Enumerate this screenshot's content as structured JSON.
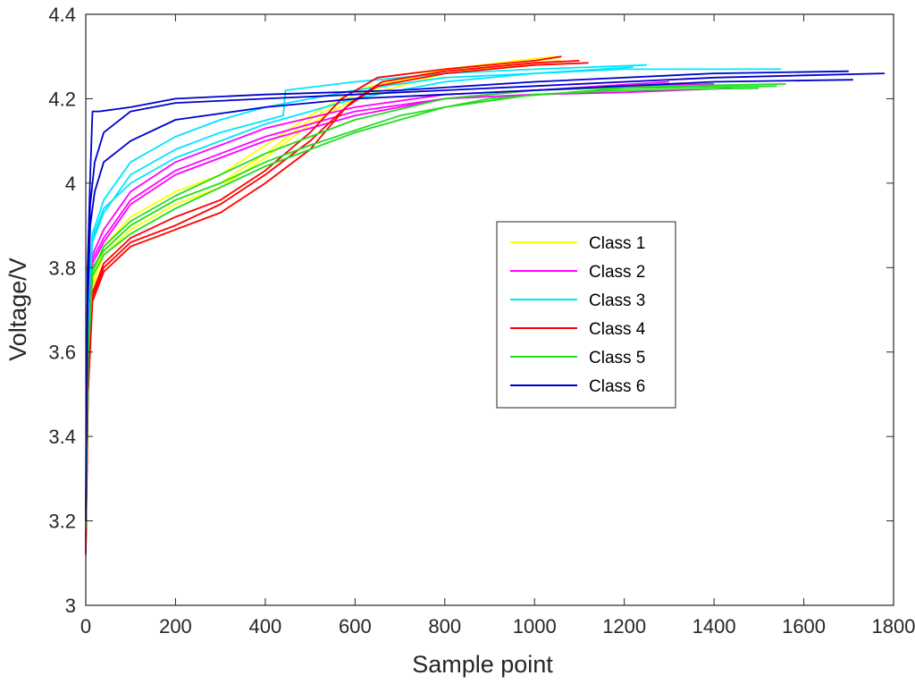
{
  "chart_data": {
    "type": "line",
    "xlabel": "Sample point",
    "ylabel": "Voltage/V",
    "xlim": [
      0,
      1800
    ],
    "ylim": [
      3,
      4.4
    ],
    "xticks": [
      0,
      200,
      400,
      600,
      800,
      1000,
      1200,
      1400,
      1600,
      1800
    ],
    "yticks": [
      3,
      3.2,
      3.4,
      3.6,
      3.8,
      4,
      4.2,
      4.4
    ],
    "ytick_labels": [
      "3",
      "3.2",
      "3.4",
      "3.6",
      "3.8",
      "4",
      "4.2",
      "4.4"
    ],
    "grid": false,
    "legend_position": "right-center",
    "series": [
      {
        "name": "Class 1",
        "color": "#ffff00",
        "curves": [
          [
            [
              0,
              3.2
            ],
            [
              5,
              3.55
            ],
            [
              15,
              3.75
            ],
            [
              40,
              3.84
            ],
            [
              100,
              3.9
            ],
            [
              200,
              3.96
            ],
            [
              300,
              4.0
            ],
            [
              400,
              4.07
            ],
            [
              500,
              4.15
            ],
            [
              600,
              4.21
            ],
            [
              800,
              4.27
            ],
            [
              1000,
              4.295
            ],
            [
              1050,
              4.3
            ]
          ],
          [
            [
              0,
              3.22
            ],
            [
              5,
              3.57
            ],
            [
              15,
              3.77
            ],
            [
              40,
              3.85
            ],
            [
              100,
              3.92
            ],
            [
              200,
              3.98
            ],
            [
              300,
              4.02
            ],
            [
              400,
              4.09
            ],
            [
              500,
              4.16
            ],
            [
              600,
              4.22
            ],
            [
              800,
              4.27
            ],
            [
              1000,
              4.29
            ],
            [
              1040,
              4.295
            ]
          ],
          [
            [
              0,
              3.21
            ],
            [
              5,
              3.56
            ],
            [
              15,
              3.76
            ],
            [
              40,
              3.83
            ],
            [
              100,
              3.89
            ],
            [
              200,
              3.95
            ],
            [
              300,
              3.99
            ],
            [
              400,
              4.06
            ],
            [
              500,
              4.14
            ],
            [
              600,
              4.2
            ],
            [
              800,
              4.26
            ],
            [
              1000,
              4.285
            ],
            [
              1060,
              4.29
            ]
          ]
        ]
      },
      {
        "name": "Class 2",
        "color": "#ff00ff",
        "curves": [
          [
            [
              0,
              3.12
            ],
            [
              5,
              3.6
            ],
            [
              15,
              3.82
            ],
            [
              40,
              3.87
            ],
            [
              100,
              3.96
            ],
            [
              200,
              4.03
            ],
            [
              300,
              4.07
            ],
            [
              400,
              4.11
            ],
            [
              600,
              4.17
            ],
            [
              800,
              4.2
            ],
            [
              1000,
              4.21
            ],
            [
              1200,
              4.215
            ],
            [
              1440,
              4.225
            ]
          ],
          [
            [
              0,
              3.15
            ],
            [
              5,
              3.62
            ],
            [
              15,
              3.83
            ],
            [
              40,
              3.89
            ],
            [
              100,
              3.98
            ],
            [
              200,
              4.05
            ],
            [
              300,
              4.09
            ],
            [
              400,
              4.13
            ],
            [
              600,
              4.18
            ],
            [
              800,
              4.21
            ],
            [
              1000,
              4.22
            ],
            [
              1200,
              4.23
            ],
            [
              1400,
              4.235
            ]
          ],
          [
            [
              0,
              3.14
            ],
            [
              5,
              3.61
            ],
            [
              15,
              3.81
            ],
            [
              40,
              3.86
            ],
            [
              100,
              3.95
            ],
            [
              200,
              4.02
            ],
            [
              300,
              4.06
            ],
            [
              400,
              4.1
            ],
            [
              600,
              4.16
            ],
            [
              800,
              4.2
            ],
            [
              1000,
              4.22
            ],
            [
              1300,
              4.24
            ]
          ]
        ]
      },
      {
        "name": "Class 3",
        "color": "#00e5ff",
        "curves": [
          [
            [
              0,
              3.3
            ],
            [
              5,
              3.7
            ],
            [
              15,
              3.86
            ],
            [
              40,
              3.93
            ],
            [
              100,
              4.02
            ],
            [
              200,
              4.08
            ],
            [
              300,
              4.12
            ],
            [
              440,
              4.16
            ],
            [
              445,
              4.22
            ],
            [
              600,
              4.24
            ],
            [
              800,
              4.26
            ],
            [
              1000,
              4.27
            ],
            [
              1250,
              4.28
            ]
          ],
          [
            [
              0,
              3.32
            ],
            [
              5,
              3.72
            ],
            [
              15,
              3.88
            ],
            [
              40,
              3.96
            ],
            [
              100,
              4.05
            ],
            [
              200,
              4.11
            ],
            [
              300,
              4.15
            ],
            [
              400,
              4.18
            ],
            [
              600,
              4.22
            ],
            [
              800,
              4.25
            ],
            [
              1000,
              4.26
            ],
            [
              1200,
              4.27
            ],
            [
              1550,
              4.27
            ]
          ],
          [
            [
              0,
              3.31
            ],
            [
              5,
              3.71
            ],
            [
              15,
              3.87
            ],
            [
              40,
              3.94
            ],
            [
              100,
              4.0
            ],
            [
              200,
              4.06
            ],
            [
              300,
              4.1
            ],
            [
              400,
              4.14
            ],
            [
              600,
              4.2
            ],
            [
              800,
              4.24
            ],
            [
              1000,
              4.26
            ],
            [
              1220,
              4.275
            ]
          ]
        ]
      },
      {
        "name": "Class 4",
        "color": "#ff0000",
        "curves": [
          [
            [
              0,
              3.12
            ],
            [
              5,
              3.5
            ],
            [
              15,
              3.72
            ],
            [
              40,
              3.79
            ],
            [
              100,
              3.85
            ],
            [
              200,
              3.89
            ],
            [
              300,
              3.93
            ],
            [
              400,
              4.0
            ],
            [
              500,
              4.08
            ],
            [
              580,
              4.18
            ],
            [
              650,
              4.23
            ],
            [
              800,
              4.26
            ],
            [
              1000,
              4.28
            ],
            [
              1120,
              4.285
            ]
          ],
          [
            [
              0,
              3.14
            ],
            [
              5,
              3.52
            ],
            [
              15,
              3.74
            ],
            [
              40,
              3.81
            ],
            [
              100,
              3.87
            ],
            [
              200,
              3.92
            ],
            [
              300,
              3.96
            ],
            [
              400,
              4.03
            ],
            [
              500,
              4.12
            ],
            [
              570,
              4.2
            ],
            [
              650,
              4.25
            ],
            [
              800,
              4.27
            ],
            [
              1000,
              4.29
            ],
            [
              1060,
              4.3
            ]
          ],
          [
            [
              0,
              3.13
            ],
            [
              5,
              3.51
            ],
            [
              15,
              3.73
            ],
            [
              40,
              3.8
            ],
            [
              100,
              3.86
            ],
            [
              200,
              3.9
            ],
            [
              300,
              3.95
            ],
            [
              400,
              4.02
            ],
            [
              500,
              4.1
            ],
            [
              590,
              4.19
            ],
            [
              660,
              4.24
            ],
            [
              800,
              4.265
            ],
            [
              1000,
              4.285
            ],
            [
              1100,
              4.29
            ]
          ]
        ]
      },
      {
        "name": "Class 5",
        "color": "#22dd22",
        "curves": [
          [
            [
              0,
              3.18
            ],
            [
              5,
              3.58
            ],
            [
              15,
              3.78
            ],
            [
              40,
              3.83
            ],
            [
              100,
              3.88
            ],
            [
              200,
              3.94
            ],
            [
              300,
              3.99
            ],
            [
              400,
              4.04
            ],
            [
              500,
              4.08
            ],
            [
              600,
              4.12
            ],
            [
              700,
              4.15
            ],
            [
              800,
              4.18
            ],
            [
              1000,
              4.21
            ],
            [
              1200,
              4.22
            ],
            [
              1500,
              4.225
            ]
          ],
          [
            [
              0,
              3.2
            ],
            [
              5,
              3.6
            ],
            [
              15,
              3.79
            ],
            [
              40,
              3.85
            ],
            [
              100,
              3.91
            ],
            [
              200,
              3.97
            ],
            [
              300,
              4.02
            ],
            [
              400,
              4.07
            ],
            [
              500,
              4.11
            ],
            [
              600,
              4.15
            ],
            [
              800,
              4.2
            ],
            [
              1000,
              4.22
            ],
            [
              1300,
              4.23
            ],
            [
              1560,
              4.235
            ]
          ],
          [
            [
              0,
              3.19
            ],
            [
              5,
              3.59
            ],
            [
              15,
              3.8
            ],
            [
              40,
              3.84
            ],
            [
              100,
              3.9
            ],
            [
              200,
              3.96
            ],
            [
              300,
              4.0
            ],
            [
              400,
              4.05
            ],
            [
              500,
              4.09
            ],
            [
              700,
              4.16
            ],
            [
              900,
              4.2
            ],
            [
              1200,
              4.225
            ],
            [
              1540,
              4.23
            ]
          ]
        ]
      },
      {
        "name": "Class 6",
        "color": "#0000cc",
        "curves": [
          [
            [
              0,
              3.2
            ],
            [
              4,
              3.75
            ],
            [
              10,
              3.95
            ],
            [
              20,
              4.05
            ],
            [
              40,
              4.12
            ],
            [
              100,
              4.17
            ],
            [
              200,
              4.19
            ],
            [
              400,
              4.2
            ],
            [
              600,
              4.21
            ],
            [
              800,
              4.22
            ],
            [
              1000,
              4.23
            ],
            [
              1400,
              4.25
            ],
            [
              1780,
              4.26
            ]
          ],
          [
            [
              0,
              3.22
            ],
            [
              4,
              3.8
            ],
            [
              10,
              4.02
            ],
            [
              15,
              4.17
            ],
            [
              30,
              4.17
            ],
            [
              100,
              4.18
            ],
            [
              200,
              4.2
            ],
            [
              400,
              4.21
            ],
            [
              700,
              4.22
            ],
            [
              1000,
              4.24
            ],
            [
              1400,
              4.26
            ],
            [
              1700,
              4.265
            ]
          ],
          [
            [
              0,
              3.21
            ],
            [
              4,
              3.7
            ],
            [
              10,
              3.9
            ],
            [
              20,
              3.98
            ],
            [
              40,
              4.05
            ],
            [
              100,
              4.1
            ],
            [
              200,
              4.15
            ],
            [
              400,
              4.18
            ],
            [
              600,
              4.2
            ],
            [
              800,
              4.21
            ],
            [
              1000,
              4.22
            ],
            [
              1400,
              4.24
            ],
            [
              1710,
              4.245
            ]
          ]
        ]
      }
    ]
  }
}
